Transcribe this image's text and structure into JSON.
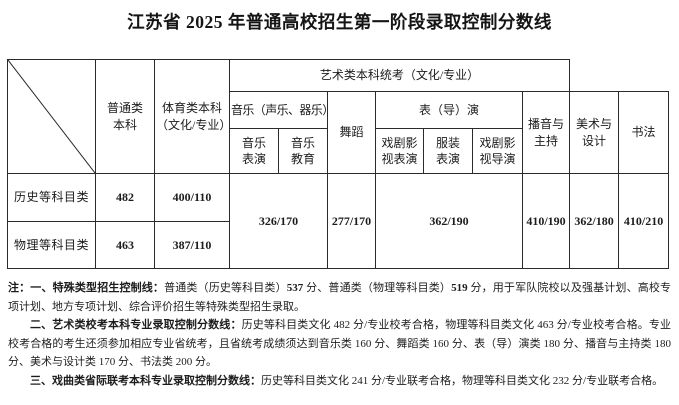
{
  "title": "江苏省 2025 年普通高校招生第一阶段录取控制分数线",
  "table": {
    "col_headers": {
      "regular": "普通类\n本科",
      "sports": "体育类本科\n（文化/专业）",
      "art_group": "艺术类本科统考（文化/专业）",
      "music_group": "音乐（声乐、器乐）",
      "music_perform": "音乐\n表演",
      "music_education": "音乐\n教育",
      "dance": "舞蹈",
      "perform_group": "表（导）演",
      "drama_perform": "戏剧影\n视表演",
      "fashion_perform": "服装\n表演",
      "drama_direct": "戏剧影\n视导演",
      "broadcast_host": "播音与\n主持",
      "art_design": "美术与\n设计",
      "calligraphy": "书法"
    },
    "rows": {
      "history": {
        "label": "历史等科目类",
        "regular": "482",
        "sports": "400/110"
      },
      "physics": {
        "label": "物理等科目类",
        "regular": "463",
        "sports": "387/110"
      },
      "merged": {
        "music": "326/170",
        "dance": "277/170",
        "perform": "362/190",
        "broadcast_host": "410/190",
        "art_design": "362/180",
        "calligraphy": "410/210"
      }
    }
  },
  "notes": [
    {
      "indent": false,
      "segments": [
        {
          "bold": true,
          "text": "注：一、特殊类型招生控制线："
        },
        {
          "bold": false,
          "text": "普通类（历史等科目类）"
        },
        {
          "bold": true,
          "text": "537"
        },
        {
          "bold": false,
          "text": " 分、普通类（物理等科目类）"
        },
        {
          "bold": true,
          "text": "519"
        },
        {
          "bold": false,
          "text": " 分，用于军队院校以及强基计划、高校专项计划、地方专项计划、综合评价招生等特殊类型招生录取。"
        }
      ]
    },
    {
      "indent": true,
      "segments": [
        {
          "bold": true,
          "text": "二、艺术类校考本科专业录取控制分数线："
        },
        {
          "bold": false,
          "text": "历史等科目类文化 482 分/专业校考合格，物理等科目类文化 463 分/专业校考合格。专业校考合格的考生还须参加相应专业省统考，且省统考成绩须达到音乐类 160 分、舞蹈类 160 分、表（导）演类 180 分、播音与主持类 180 分、美术与设计类 170 分、书法类 200 分。"
        }
      ]
    },
    {
      "indent": true,
      "segments": [
        {
          "bold": true,
          "text": "三、戏曲类省际联考本科专业录取控制分数线："
        },
        {
          "bold": false,
          "text": "历史等科目类文化 241 分/专业联考合格，物理等科目类文化 232 分/专业联考合格。"
        }
      ]
    }
  ]
}
